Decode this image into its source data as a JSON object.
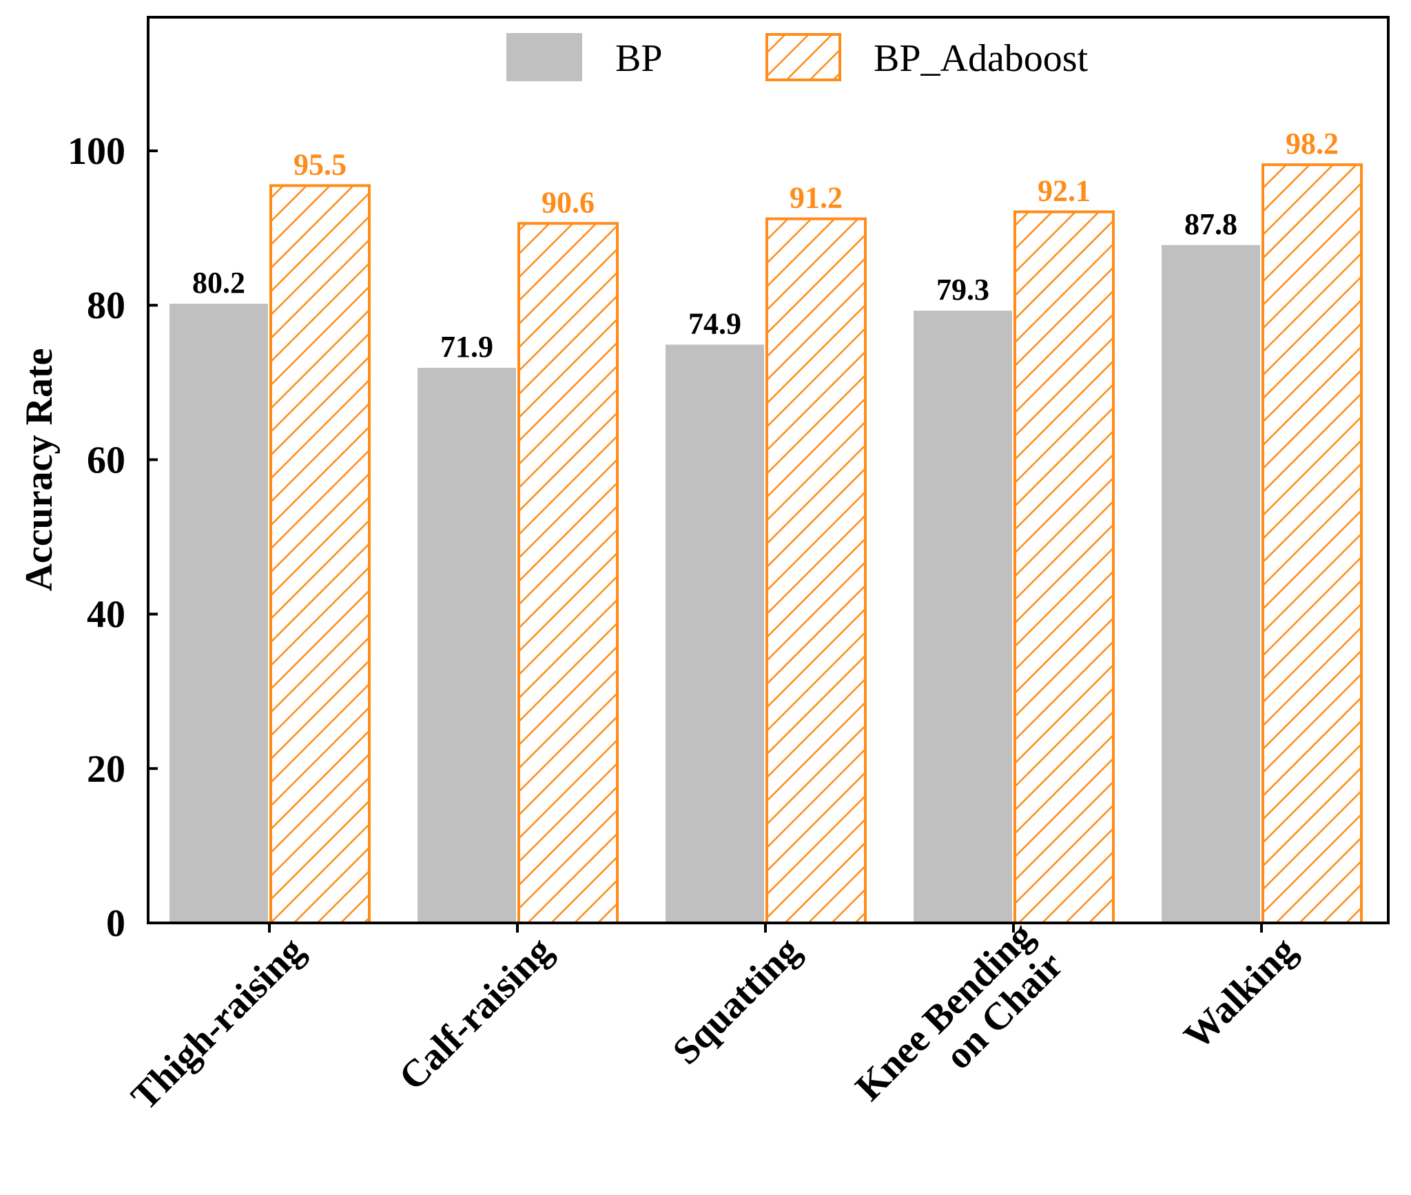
{
  "chart_data": {
    "type": "bar",
    "title": "",
    "xlabel": "",
    "ylabel": "Accuracy Rate",
    "ylim": [
      0,
      120
    ],
    "yticks": [
      0,
      20,
      40,
      60,
      80,
      100
    ],
    "categories": [
      [
        "Thigh-raising"
      ],
      [
        "Calf-raising"
      ],
      [
        "Squatting"
      ],
      [
        "Knee Bending",
        "on Chair"
      ],
      [
        "Walking"
      ]
    ],
    "series": [
      {
        "name": "BP",
        "values": [
          80.2,
          71.9,
          74.9,
          79.3,
          87.8
        ],
        "color": "#c0c0c0",
        "label_color": "#000000",
        "pattern": "solid"
      },
      {
        "name": "BP_Adaboost",
        "values": [
          95.5,
          90.6,
          91.2,
          92.1,
          98.2
        ],
        "color": "#ff8c1a",
        "label_color": "#ff8c1a",
        "pattern": "hatch"
      }
    ],
    "legend_position": "top-center",
    "grid": false
  }
}
